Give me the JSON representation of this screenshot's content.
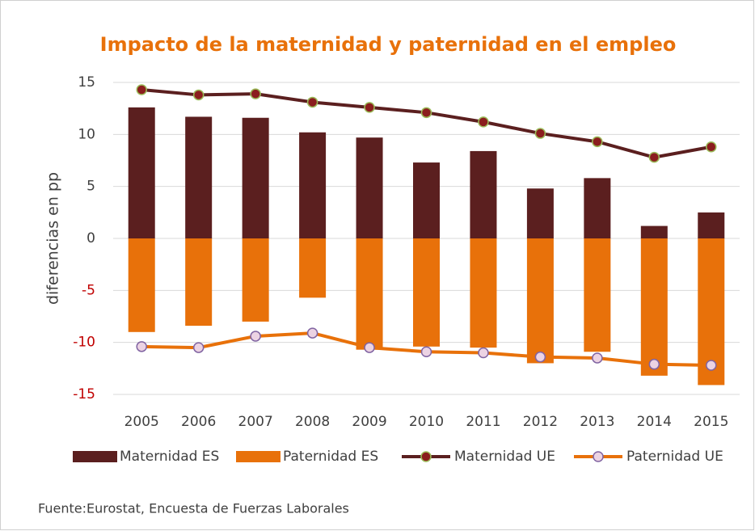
{
  "chart_data": {
    "type": "bar_line",
    "title": "Impacto de la maternidad y paternidad en el empleo",
    "y_label": "diferencias en pp",
    "source": "Fuente:Eurostat, Encuesta de Fuerzas Laborales",
    "categories": [
      "2005",
      "2006",
      "2007",
      "2008",
      "2009",
      "2010",
      "2011",
      "2012",
      "2013",
      "2014",
      "2015"
    ],
    "series": [
      {
        "name": "Maternidad ES",
        "kind": "bar",
        "color": "#5b1f1f",
        "values": [
          12.6,
          11.7,
          11.6,
          10.2,
          9.7,
          7.3,
          8.4,
          4.8,
          5.8,
          1.2,
          2.5
        ]
      },
      {
        "name": "Paternidad ES",
        "kind": "bar",
        "color": "#e8710a",
        "values": [
          -9.0,
          -8.4,
          -8.0,
          -5.7,
          -10.7,
          -10.4,
          -10.5,
          -12.0,
          -10.9,
          -13.2,
          -14.1
        ]
      },
      {
        "name": "Maternidad UE",
        "kind": "line",
        "color": "#5b1f1f",
        "marker_fill": "#8b1e1e",
        "marker_stroke": "#9bbb59",
        "values": [
          14.3,
          13.8,
          13.9,
          13.1,
          12.6,
          12.1,
          11.2,
          10.1,
          9.3,
          7.8,
          8.8
        ]
      },
      {
        "name": "Paternidad UE",
        "kind": "line",
        "color": "#e8710a",
        "marker_fill": "#ecd3e3",
        "marker_stroke": "#8064a2",
        "values": [
          -10.4,
          -10.5,
          -9.4,
          -9.1,
          -10.5,
          -10.9,
          -11.0,
          -11.4,
          -11.5,
          -12.1,
          -12.2
        ]
      }
    ],
    "ylim": [
      -15,
      15
    ],
    "yticks": [
      15,
      10,
      5,
      0,
      -5,
      -10,
      -15
    ],
    "grid": true,
    "negative_tick_color": "#c00000",
    "legend": "bottom"
  }
}
